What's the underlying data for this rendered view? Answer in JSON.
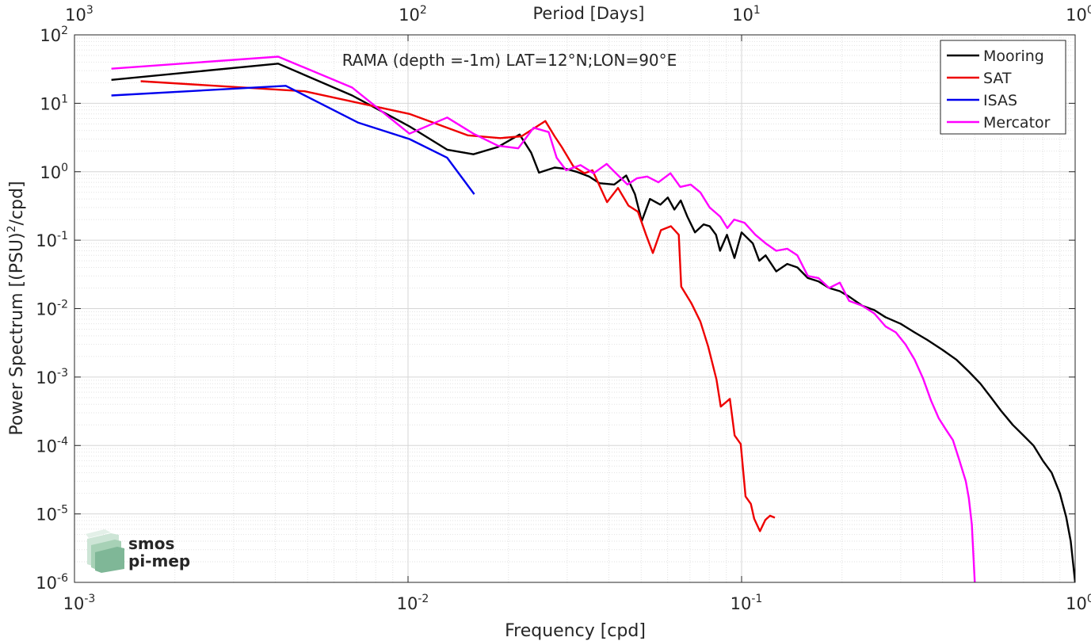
{
  "chart_data": {
    "type": "line",
    "title": "RAMA (depth =-1m) LAT=12°N;LON=90°E",
    "xlabel": "Frequency [cpd]",
    "ylabel": "Power Spectrum [(PSU)",
    "ylabel_sup": "2",
    "ylabel_tail": "/cpd]",
    "top_axis_label": "Period [Days]",
    "xscale": "log",
    "yscale": "log",
    "xlim": [
      0.001,
      1
    ],
    "ylim": [
      1e-06,
      100
    ],
    "grid": true,
    "legend_position": "top-right",
    "x_ticks": [
      {
        "value": 0.001,
        "base": "10",
        "exp": "-3"
      },
      {
        "value": 0.01,
        "base": "10",
        "exp": "-2"
      },
      {
        "value": 0.1,
        "base": "10",
        "exp": "-1"
      },
      {
        "value": 1,
        "base": "10",
        "exp": "0"
      }
    ],
    "top_ticks": [
      {
        "value": 0.001,
        "base": "10",
        "exp": "3"
      },
      {
        "value": 0.01,
        "base": "10",
        "exp": "2"
      },
      {
        "value": 0.1,
        "base": "10",
        "exp": "1"
      },
      {
        "value": 1,
        "base": "10",
        "exp": "0"
      }
    ],
    "y_ticks": [
      {
        "value": 1e-06,
        "base": "10",
        "exp": "-6"
      },
      {
        "value": 1e-05,
        "base": "10",
        "exp": "-5"
      },
      {
        "value": 0.0001,
        "base": "10",
        "exp": "-4"
      },
      {
        "value": 0.001,
        "base": "10",
        "exp": "-3"
      },
      {
        "value": 0.01,
        "base": "10",
        "exp": "-2"
      },
      {
        "value": 0.1,
        "base": "10",
        "exp": "-1"
      },
      {
        "value": 1,
        "base": "10",
        "exp": "0"
      },
      {
        "value": 10,
        "base": "10",
        "exp": "1"
      },
      {
        "value": 100,
        "base": "10",
        "exp": "2"
      }
    ],
    "series": [
      {
        "name": "Mooring",
        "color": "#000000",
        "noisy": false,
        "points": [
          [
            0.00129,
            22
          ],
          [
            0.00408,
            38
          ],
          [
            0.0068,
            13
          ],
          [
            0.0101,
            4.6
          ],
          [
            0.0131,
            2.1
          ],
          [
            0.0157,
            1.8
          ],
          [
            0.0186,
            2.3
          ],
          [
            0.0216,
            3.5
          ],
          [
            0.0234,
            1.9
          ],
          [
            0.0247,
            0.97
          ],
          [
            0.0275,
            1.15
          ],
          [
            0.0298,
            1.1
          ],
          [
            0.032,
            1.0
          ],
          [
            0.0349,
            0.85
          ],
          [
            0.0375,
            0.68
          ],
          [
            0.0415,
            0.65
          ],
          [
            0.0451,
            0.88
          ],
          [
            0.0479,
            0.47
          ],
          [
            0.0502,
            0.19
          ],
          [
            0.0531,
            0.4
          ],
          [
            0.0571,
            0.33
          ],
          [
            0.0601,
            0.42
          ],
          [
            0.0629,
            0.28
          ],
          [
            0.0657,
            0.38
          ],
          [
            0.0688,
            0.22
          ],
          [
            0.0725,
            0.13
          ],
          [
            0.0769,
            0.17
          ],
          [
            0.0802,
            0.16
          ],
          [
            0.0838,
            0.12
          ],
          [
            0.0862,
            0.07
          ],
          [
            0.0904,
            0.12
          ],
          [
            0.0952,
            0.055
          ],
          [
            0.1,
            0.13
          ],
          [
            0.108,
            0.09
          ],
          [
            0.113,
            0.05
          ],
          [
            0.118,
            0.06
          ],
          [
            0.127,
            0.035
          ],
          [
            0.137,
            0.045
          ],
          [
            0.147,
            0.04
          ],
          [
            0.158,
            0.028
          ],
          [
            0.17,
            0.025
          ],
          [
            0.183,
            0.02
          ],
          [
            0.197,
            0.018
          ],
          [
            0.21,
            0.015
          ],
          [
            0.23,
            0.011
          ],
          [
            0.25,
            0.0095
          ],
          [
            0.27,
            0.0075
          ],
          [
            0.3,
            0.006
          ],
          [
            0.33,
            0.0045
          ],
          [
            0.36,
            0.0035
          ],
          [
            0.4,
            0.0025
          ],
          [
            0.44,
            0.0018
          ],
          [
            0.48,
            0.0012
          ],
          [
            0.52,
            0.0008
          ],
          [
            0.56,
            0.0005
          ],
          [
            0.6,
            0.00032
          ],
          [
            0.65,
            0.0002
          ],
          [
            0.7,
            0.00014
          ],
          [
            0.75,
            0.0001
          ],
          [
            0.8,
            6e-05
          ],
          [
            0.85,
            4e-05
          ],
          [
            0.9,
            2e-05
          ],
          [
            0.94,
            9e-06
          ],
          [
            0.97,
            4e-06
          ],
          [
            1.0,
            1e-06
          ]
        ]
      },
      {
        "name": "SAT",
        "color": "#ee0000",
        "noisy": false,
        "points": [
          [
            0.00158,
            21
          ],
          [
            0.0049,
            15
          ],
          [
            0.0101,
            7
          ],
          [
            0.0151,
            3.4
          ],
          [
            0.0189,
            3.1
          ],
          [
            0.0219,
            3.3
          ],
          [
            0.0258,
            5.5
          ],
          [
            0.0275,
            3.3
          ],
          [
            0.0289,
            2.3
          ],
          [
            0.0313,
            1.2
          ],
          [
            0.0338,
            0.95
          ],
          [
            0.0357,
            1.05
          ],
          [
            0.0395,
            0.36
          ],
          [
            0.0426,
            0.58
          ],
          [
            0.0458,
            0.32
          ],
          [
            0.0489,
            0.26
          ],
          [
            0.0517,
            0.12
          ],
          [
            0.0542,
            0.065
          ],
          [
            0.0573,
            0.14
          ],
          [
            0.0614,
            0.16
          ],
          [
            0.0648,
            0.12
          ],
          [
            0.0659,
            0.021
          ],
          [
            0.0707,
            0.012
          ],
          [
            0.0752,
            0.0065
          ],
          [
            0.0794,
            0.0028
          ],
          [
            0.0841,
            0.00092
          ],
          [
            0.0866,
            0.00037
          ],
          [
            0.0922,
            0.00048
          ],
          [
            0.0953,
            0.00014
          ],
          [
            0.0994,
            0.000105
          ],
          [
            0.1028,
            1.8e-05
          ],
          [
            0.1066,
            1.4e-05
          ],
          [
            0.1091,
            8.5e-06
          ],
          [
            0.1135,
            5.6e-06
          ],
          [
            0.1178,
            8.2e-06
          ],
          [
            0.1217,
            9.4e-06
          ],
          [
            0.1258,
            8.8e-06
          ]
        ]
      },
      {
        "name": "ISAS",
        "color": "#0000ee",
        "noisy": false,
        "points": [
          [
            0.00129,
            13
          ],
          [
            0.0043,
            18
          ],
          [
            0.0071,
            5.2
          ],
          [
            0.0101,
            3.0
          ],
          [
            0.0131,
            1.6
          ],
          [
            0.0158,
            0.47
          ]
        ]
      },
      {
        "name": "Mercator",
        "color": "#ff00ff",
        "noisy": false,
        "points": [
          [
            0.00129,
            32
          ],
          [
            0.00408,
            48
          ],
          [
            0.0068,
            17
          ],
          [
            0.0101,
            3.6
          ],
          [
            0.0131,
            6.2
          ],
          [
            0.0157,
            3.6
          ],
          [
            0.0186,
            2.4
          ],
          [
            0.0214,
            2.2
          ],
          [
            0.0238,
            4.4
          ],
          [
            0.0264,
            3.8
          ],
          [
            0.0279,
            1.6
          ],
          [
            0.0298,
            1.05
          ],
          [
            0.0329,
            1.25
          ],
          [
            0.036,
            0.95
          ],
          [
            0.0394,
            1.3
          ],
          [
            0.042,
            0.95
          ],
          [
            0.0455,
            0.65
          ],
          [
            0.0485,
            0.8
          ],
          [
            0.0521,
            0.85
          ],
          [
            0.0563,
            0.7
          ],
          [
            0.0612,
            0.95
          ],
          [
            0.0655,
            0.6
          ],
          [
            0.0704,
            0.65
          ],
          [
            0.0752,
            0.5
          ],
          [
            0.0802,
            0.3
          ],
          [
            0.0863,
            0.22
          ],
          [
            0.0906,
            0.15
          ],
          [
            0.095,
            0.2
          ],
          [
            0.102,
            0.18
          ],
          [
            0.11,
            0.12
          ],
          [
            0.118,
            0.09
          ],
          [
            0.127,
            0.07
          ],
          [
            0.137,
            0.075
          ],
          [
            0.147,
            0.06
          ],
          [
            0.158,
            0.03
          ],
          [
            0.17,
            0.028
          ],
          [
            0.183,
            0.02
          ],
          [
            0.197,
            0.024
          ],
          [
            0.21,
            0.013
          ],
          [
            0.23,
            0.011
          ],
          [
            0.25,
            0.0085
          ],
          [
            0.27,
            0.0055
          ],
          [
            0.29,
            0.0045
          ],
          [
            0.31,
            0.003
          ],
          [
            0.33,
            0.0018
          ],
          [
            0.35,
            0.00095
          ],
          [
            0.37,
            0.00045
          ],
          [
            0.39,
            0.00025
          ],
          [
            0.41,
            0.00017
          ],
          [
            0.43,
            0.00012
          ],
          [
            0.45,
            6e-05
          ],
          [
            0.47,
            3e-05
          ],
          [
            0.48,
            1.7e-05
          ],
          [
            0.49,
            7e-06
          ],
          [
            0.5,
            1e-06
          ]
        ]
      }
    ]
  },
  "logo": {
    "line1": "smos",
    "line2": "pi-mep",
    "color": "#7fb797"
  }
}
